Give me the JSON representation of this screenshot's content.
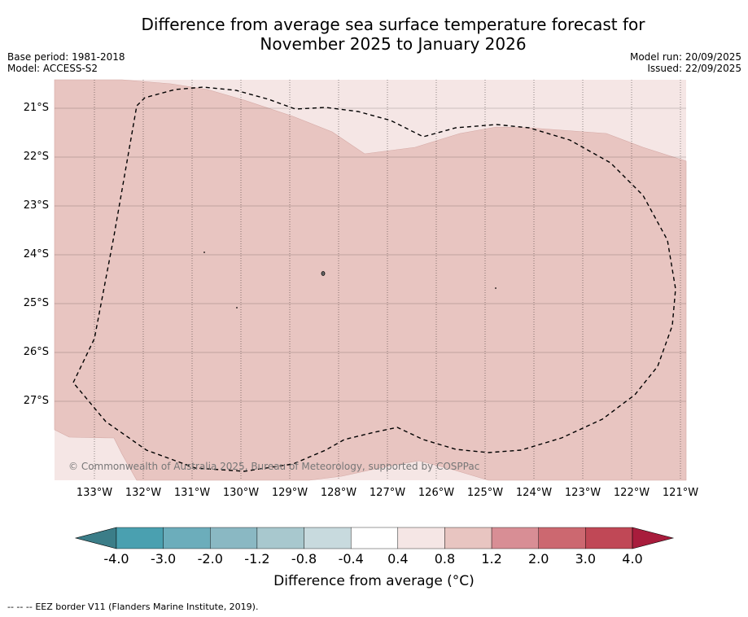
{
  "title_line1": "Difference from average sea surface temperature forecast for",
  "title_line2": "November 2025 to January 2026",
  "base_period": "Base period: 1981-2018",
  "model": "Model: ACCESS-S2",
  "model_run": "Model run: 20/09/2025",
  "issued": "Issued: 22/09/2025",
  "copyright": "© Commonwealth of Australia 2025, Bureau of Meteorology, supported by COSPPac",
  "lat_labels": [
    "21°S",
    "22°S",
    "23°S",
    "24°S",
    "25°S",
    "26°S",
    "27°S"
  ],
  "lon_labels": [
    "133°W",
    "132°W",
    "131°W",
    "130°W",
    "129°W",
    "128°W",
    "127°W",
    "126°W",
    "125°W",
    "124°W",
    "123°W",
    "122°W",
    "121°W"
  ],
  "colorbar": {
    "labels": [
      "-4.0",
      "-3.0",
      "-2.0",
      "-1.2",
      "-0.8",
      "-0.4",
      "0.4",
      "0.8",
      "1.2",
      "2.0",
      "3.0",
      "4.0"
    ],
    "colors": [
      "#3b7d88",
      "#4aa0b0",
      "#6cadbb",
      "#8ab8c3",
      "#a8c8ce",
      "#c8dade",
      "#ffffff",
      "#f5e6e5",
      "#e8c5c1",
      "#d88e95",
      "#cc6870",
      "#c04856",
      "#a81c3c"
    ],
    "title": "Difference from average (°C)"
  },
  "legend": {
    "marker": "--  --  --",
    "text": "EEZ border V11 (Flanders Marine Institute, 2019)."
  }
}
